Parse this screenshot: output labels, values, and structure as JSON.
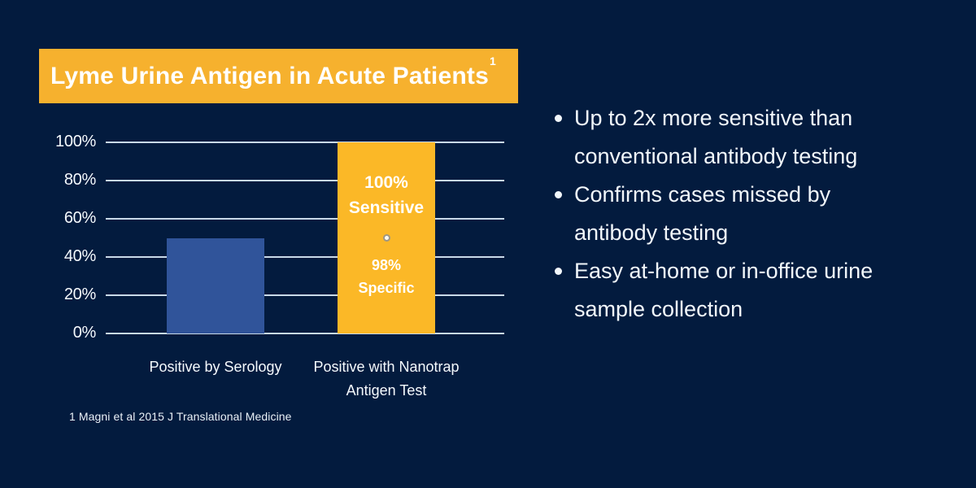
{
  "title": {
    "text": "Lyme Urine Antigen in Acute Patients",
    "superscript": "1"
  },
  "chart_data": {
    "type": "bar",
    "categories": [
      "Positive by Serology",
      "Positive with Nanotrap Antigen Test"
    ],
    "values": [
      50,
      100
    ],
    "series_colors": [
      "#30549a",
      "#fbb827"
    ],
    "ylim": [
      0,
      100
    ],
    "yticks": [
      0,
      20,
      40,
      60,
      80,
      100
    ],
    "ytick_suffix": "%",
    "grid": true,
    "legend_position": "none",
    "annotation": {
      "line1": "100%",
      "line2": "Sensitive",
      "separator": "dot",
      "line3": "98%",
      "line4": "Specific"
    }
  },
  "footnote": "1 Magni et al 2015 J Translational Medicine",
  "bullets": [
    {
      "lines": [
        "Up to 2x more sensitive than",
        "conventional antibody testing"
      ]
    },
    {
      "lines": [
        "Confirms cases missed by",
        "antibody testing"
      ]
    },
    {
      "lines": [
        "Easy at-home or in-office urine",
        "sample collection"
      ]
    }
  ],
  "colors": {
    "background": "#031b3e",
    "banner_yellow": "#f6b12e",
    "bar_blue": "#30549a",
    "bar_yellow": "#fbb827",
    "gridline": "#c9d9e8",
    "text_light": "#f2f7fb"
  }
}
